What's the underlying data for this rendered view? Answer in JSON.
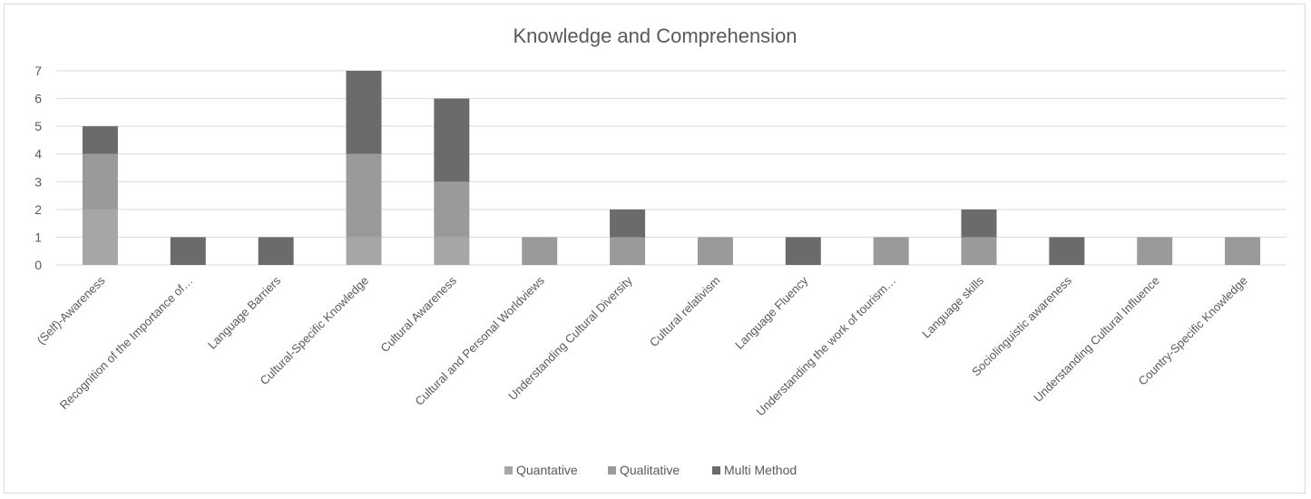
{
  "chart_data": {
    "type": "bar",
    "stacked": true,
    "title": "Knowledge and Comprehension",
    "xlabel": "",
    "ylabel": "",
    "ylim": [
      0,
      7
    ],
    "yticks": [
      0,
      1,
      2,
      3,
      4,
      5,
      6,
      7
    ],
    "grid": true,
    "legend_position": "bottom",
    "categories": [
      "(Self)-Awareness",
      "Recognition of the Importance of…",
      "Language Barriers",
      "Cultural-Specific Knowledge",
      "Cultural Awareness",
      "Cultural and Personal Worldviews",
      "Understanding Cultural Diversity",
      "Cultural relativism",
      "Language Fluency",
      "Understanding the work of tourism…",
      "Language skills",
      "Sociolinguistic awareness",
      "Understanding Cultural Influence",
      "Country-Specific Knowledge"
    ],
    "series": [
      {
        "name": "Quantative",
        "color": "#a6a6a6",
        "values": [
          2,
          0,
          0,
          1,
          1,
          0,
          0,
          0,
          0,
          0,
          0,
          0,
          0,
          0
        ]
      },
      {
        "name": "Qualitative",
        "color": "#9a9a9a",
        "values": [
          2,
          0,
          0,
          3,
          2,
          1,
          1,
          1,
          0,
          1,
          1,
          0,
          1,
          1
        ]
      },
      {
        "name": "Multi Method",
        "color": "#6b6b6b",
        "values": [
          1,
          1,
          1,
          3,
          3,
          0,
          1,
          0,
          1,
          0,
          1,
          1,
          0,
          0
        ]
      }
    ]
  }
}
